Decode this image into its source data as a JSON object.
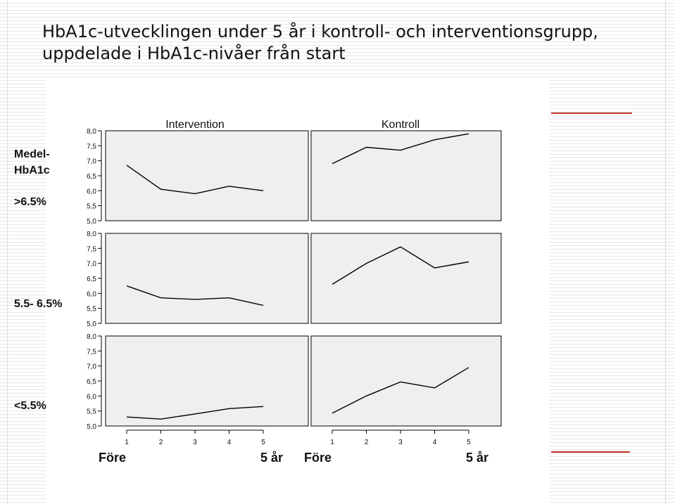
{
  "slide": {
    "title_line1": "HbA1c-utvecklingen under 5 år i kontroll- och interventionsgrupp,",
    "title_line2": "uppdelade i HbA1c-nivåer från start"
  },
  "chart_data": {
    "type": "line",
    "row_header": "Medel-\nHbA1c",
    "columns": [
      "Intervention",
      "Kontroll"
    ],
    "rows": [
      ">6.5%",
      "5.5- 6.5%",
      "<5.5%"
    ],
    "x": [
      1,
      2,
      3,
      4,
      5
    ],
    "x_start_label": "Före",
    "x_end_label": "5 år",
    "y_ticks": [
      "5,0",
      "5,5",
      "6,0",
      "6,5",
      "7,0",
      "7,5",
      "8,0"
    ],
    "ylim": [
      5.0,
      8.0
    ],
    "panels": [
      {
        "row": ">6.5%",
        "column": "Intervention",
        "values": [
          6.85,
          6.05,
          5.9,
          6.15,
          6.0
        ]
      },
      {
        "row": ">6.5%",
        "column": "Kontroll",
        "values": [
          6.9,
          7.45,
          7.35,
          7.7,
          7.9
        ]
      },
      {
        "row": "5.5- 6.5%",
        "column": "Intervention",
        "values": [
          6.25,
          5.85,
          5.8,
          5.85,
          5.6
        ]
      },
      {
        "row": "5.5- 6.5%",
        "column": "Kontroll",
        "values": [
          6.3,
          7.0,
          7.55,
          6.85,
          7.05
        ]
      },
      {
        "row": "<5.5%",
        "column": "Intervention",
        "values": [
          5.3,
          5.23,
          5.4,
          5.58,
          5.65
        ]
      },
      {
        "row": "<5.5%",
        "column": "Kontroll",
        "values": [
          5.43,
          6.0,
          6.47,
          6.27,
          6.95
        ]
      }
    ]
  }
}
